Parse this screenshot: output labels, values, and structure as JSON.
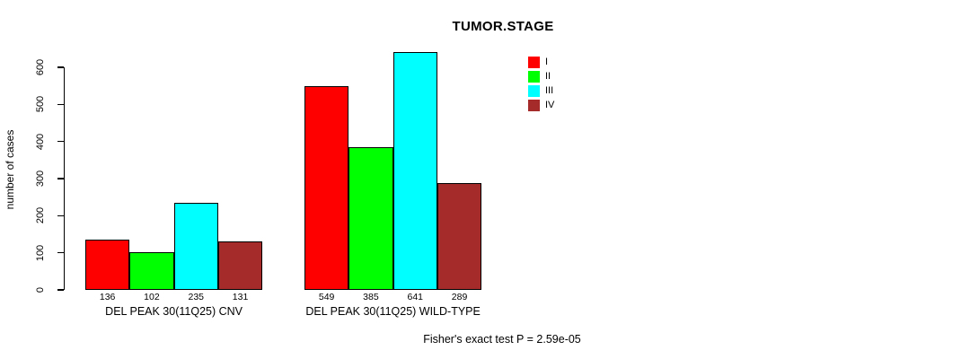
{
  "chart_data": {
    "type": "bar",
    "title": "TUMOR.STAGE",
    "ylabel": "number of cases",
    "xlabel": "",
    "ylim": [
      0,
      600
    ],
    "yticks": [
      0,
      100,
      200,
      300,
      400,
      500,
      600
    ],
    "grid": false,
    "legend_position": "top-right",
    "categories": [
      "DEL PEAK 30(11Q25) CNV",
      "DEL PEAK 30(11Q25) WILD-TYPE"
    ],
    "series": [
      {
        "name": "I",
        "color": "#FF0000",
        "values": [
          136,
          549
        ]
      },
      {
        "name": "II",
        "color": "#00FF00",
        "values": [
          102,
          385
        ]
      },
      {
        "name": "III",
        "color": "#00FFFF",
        "values": [
          235,
          641
        ]
      },
      {
        "name": "IV",
        "color": "#A52A2A",
        "values": [
          131,
          289
        ]
      }
    ],
    "bar_value_labels": [
      [
        136,
        102,
        235,
        131
      ],
      [
        549,
        385,
        641,
        289
      ]
    ]
  },
  "annotation": {
    "fisher_note": "Fisher's exact test P = 2.59e-05"
  }
}
